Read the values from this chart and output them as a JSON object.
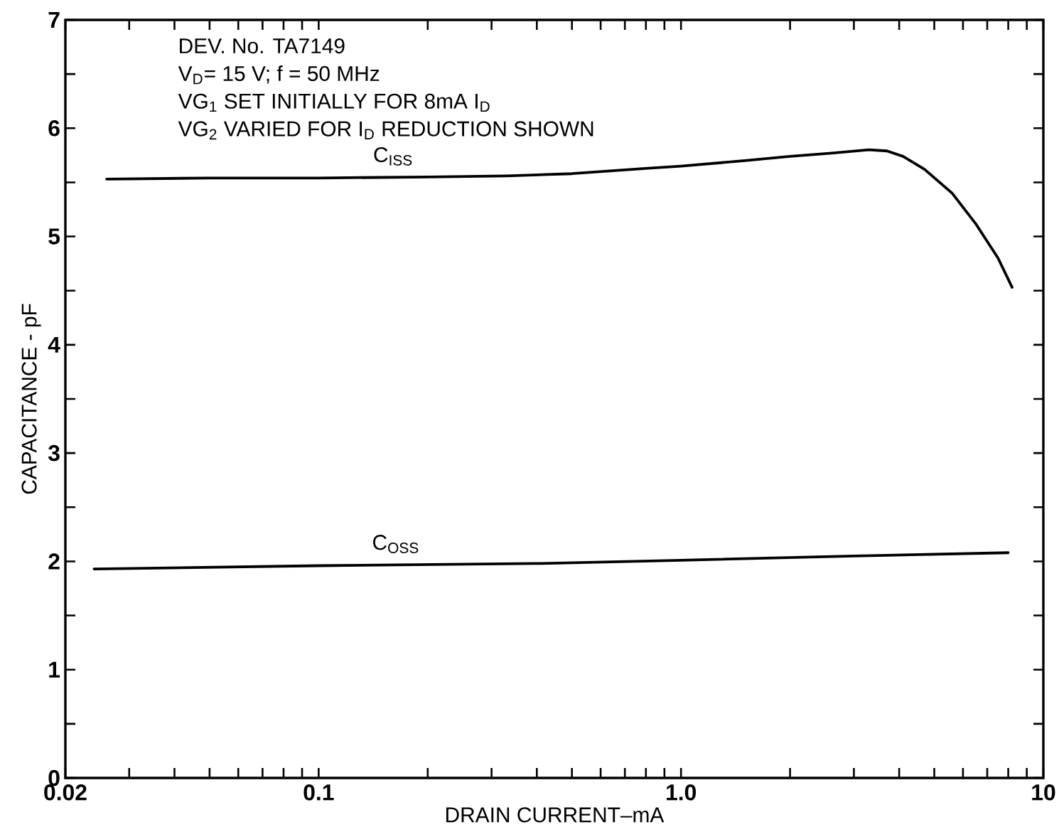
{
  "chart_data": {
    "type": "line",
    "xlabel": "DRAIN CURRENT–mA",
    "ylabel": "CAPACITANCE - pF",
    "annotations": [
      "DEV. No. TA7149",
      "V$_{D}$= 15 V; f = 50 MHz",
      "VG$_{1}$ SET INITIALLY FOR 8mA I$_{D}$",
      "VG$_{2}$ VARIED FOR I$_{D}$ REDUCTION SHOWN"
    ],
    "log": "x",
    "line_style": "solid",
    "xlim": [
      0.02,
      10
    ],
    "ylim": [
      0,
      7
    ],
    "xticks": [
      0.02,
      {
        "value": 0.03,
        "label": null
      },
      {
        "value": 0.04,
        "label": null
      },
      {
        "value": 0.05,
        "label": null
      },
      {
        "value": 0.06,
        "label": null
      },
      {
        "value": 0.07,
        "label": null
      },
      {
        "value": 0.08,
        "label": null
      },
      {
        "value": 0.09,
        "label": null
      },
      0.1,
      {
        "value": 0.2,
        "label": null
      },
      {
        "value": 0.3,
        "label": null
      },
      {
        "value": 0.4,
        "label": null
      },
      {
        "value": 0.5,
        "label": null
      },
      {
        "value": 0.6,
        "label": null
      },
      {
        "value": 0.7,
        "label": null
      },
      {
        "value": 0.8,
        "label": null
      },
      {
        "value": 0.9,
        "label": null
      },
      {
        "value": 1,
        "label": "1.0"
      },
      {
        "value": 2,
        "label": null
      },
      {
        "value": 3,
        "label": null
      },
      {
        "value": 4,
        "label": null
      },
      {
        "value": 5,
        "label": null
      },
      {
        "value": 6,
        "label": null
      },
      {
        "value": 7,
        "label": null
      },
      {
        "value": 8,
        "label": null
      },
      {
        "value": 9,
        "label": null
      },
      10
    ],
    "yticks": [
      0,
      {
        "value": 0.5,
        "label": null
      },
      1,
      {
        "value": 1.5,
        "label": null
      },
      2,
      {
        "value": 2.5,
        "label": null
      },
      3,
      {
        "value": 3.5,
        "label": null
      },
      4,
      {
        "value": 4.5,
        "label": null
      },
      5,
      {
        "value": 5.5,
        "label": null
      },
      6,
      {
        "value": 6.5,
        "label": null
      },
      7
    ],
    "series": [
      {
        "name": "C$_{ISS}$",
        "color": "#000000",
        "x": [
          0.026,
          0.05,
          0.1,
          0.2,
          0.33,
          0.5,
          0.81,
          1.0,
          1.5,
          2.0,
          2.6,
          3.3,
          3.7,
          4.1,
          4.7,
          5.6,
          6.5,
          7.5,
          8.2
        ],
        "values": [
          5.53,
          5.54,
          5.54,
          5.55,
          5.56,
          5.58,
          5.63,
          5.65,
          5.7,
          5.74,
          5.77,
          5.8,
          5.79,
          5.74,
          5.62,
          5.4,
          5.12,
          4.8,
          4.53
        ]
      },
      {
        "name": "C$_{OSS}$",
        "color": "#000000",
        "x": [
          0.024,
          0.1,
          0.4,
          1.0,
          3.0,
          8.0
        ],
        "values": [
          1.93,
          1.96,
          1.98,
          2.01,
          2.05,
          2.08
        ]
      }
    ]
  }
}
